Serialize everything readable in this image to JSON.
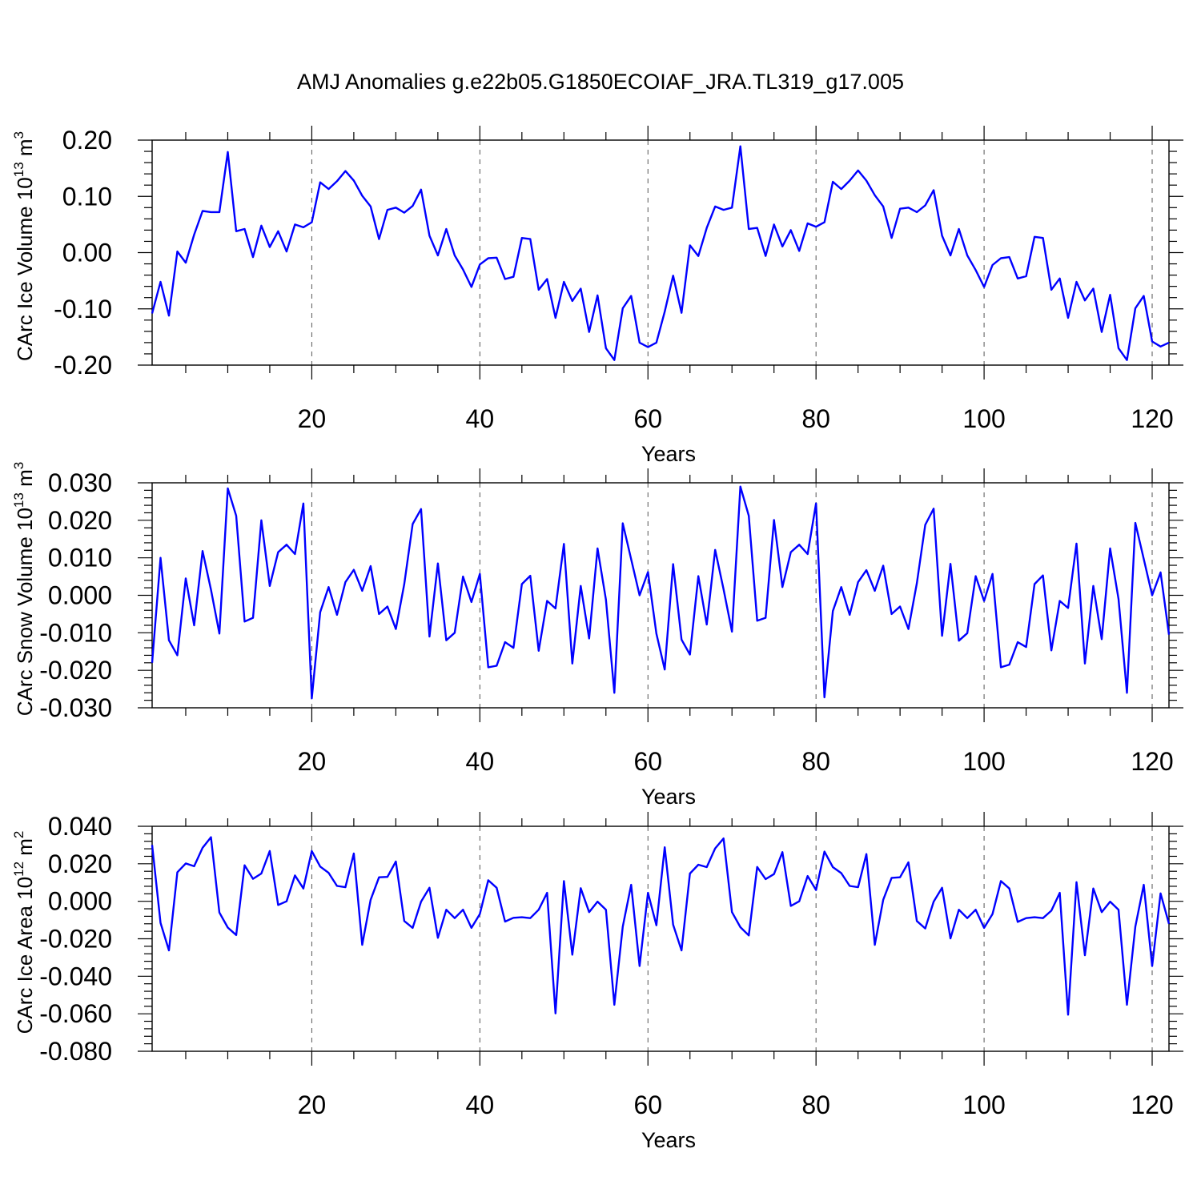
{
  "title": "AMJ Anomalies g.e22b05.G1850ECOIAF_JRA.TL319_g17.005",
  "chart_data": [
    {
      "type": "line",
      "name": "ice-volume",
      "ylabel": "CArc Ice Volume",
      "ylabel_unit_base": "10",
      "ylabel_unit_exp": "13",
      "ylabel_unit_rest": "m",
      "ylabel_unit_pow": "3",
      "xlabel": "Years",
      "xlim": [
        1,
        122
      ],
      "ylim": [
        -0.2,
        0.2
      ],
      "xticks": [
        20,
        40,
        60,
        80,
        100,
        120
      ],
      "xtick_labels": [
        "20",
        "40",
        "60",
        "80",
        "100",
        "120"
      ],
      "yticks": [
        -0.2,
        -0.1,
        0.0,
        0.1,
        0.2
      ],
      "ytick_labels": [
        "-0.20",
        "-0.10",
        "0.00",
        "0.10",
        "0.20"
      ],
      "x_start": 1,
      "values": [
        -0.108,
        -0.052,
        -0.112,
        0.002,
        -0.018,
        0.032,
        0.074,
        0.072,
        0.072,
        0.179,
        0.038,
        0.042,
        -0.008,
        0.048,
        0.01,
        0.038,
        0.002,
        0.05,
        0.045,
        0.054,
        0.125,
        0.113,
        0.127,
        0.145,
        0.128,
        0.101,
        0.082,
        0.024,
        0.076,
        0.08,
        0.071,
        0.083,
        0.112,
        0.03,
        -0.005,
        0.042,
        -0.005,
        -0.03,
        -0.061,
        -0.021,
        -0.01,
        -0.009,
        -0.047,
        -0.043,
        0.026,
        0.024,
        -0.066,
        -0.047,
        -0.116,
        -0.052,
        -0.086,
        -0.064,
        -0.141,
        -0.076,
        -0.17,
        -0.191,
        -0.099,
        -0.077,
        -0.16,
        -0.168,
        -0.16,
        -0.105,
        -0.041,
        -0.107,
        0.013,
        -0.006,
        0.044,
        0.082,
        0.076,
        0.08,
        0.189,
        0.042,
        0.044,
        -0.006,
        0.05,
        0.011,
        0.04,
        0.003,
        0.052,
        0.046,
        0.054,
        0.126,
        0.113,
        0.128,
        0.146,
        0.128,
        0.102,
        0.082,
        0.026,
        0.078,
        0.08,
        0.072,
        0.084,
        0.111,
        0.03,
        -0.005,
        0.042,
        -0.005,
        -0.031,
        -0.061,
        -0.022,
        -0.01,
        -0.008,
        -0.046,
        -0.042,
        0.028,
        0.026,
        -0.066,
        -0.046,
        -0.116,
        -0.052,
        -0.085,
        -0.064,
        -0.141,
        -0.075,
        -0.17,
        -0.191,
        -0.099,
        -0.077,
        -0.158,
        -0.167,
        -0.16
      ]
    },
    {
      "type": "line",
      "name": "snow-volume",
      "ylabel": "CArc Snow Volume",
      "ylabel_unit_base": "10",
      "ylabel_unit_exp": "13",
      "ylabel_unit_rest": "m",
      "ylabel_unit_pow": "3",
      "xlabel": "Years",
      "xlim": [
        1,
        122
      ],
      "ylim": [
        -0.03,
        0.03
      ],
      "xticks": [
        20,
        40,
        60,
        80,
        100,
        120
      ],
      "xtick_labels": [
        "20",
        "40",
        "60",
        "80",
        "100",
        "120"
      ],
      "yticks": [
        -0.03,
        -0.02,
        -0.01,
        0.0,
        0.01,
        0.02,
        0.03
      ],
      "ytick_labels": [
        "-0.030",
        "-0.020",
        "-0.010",
        "0.000",
        "0.010",
        "0.020",
        "0.030"
      ],
      "x_start": 1,
      "values": [
        -0.018,
        0.01,
        -0.012,
        -0.016,
        0.0045,
        -0.008,
        0.0118,
        0.0015,
        -0.0102,
        0.0285,
        0.0212,
        -0.007,
        -0.006,
        0.02,
        0.0025,
        0.0115,
        0.0135,
        0.011,
        0.0245,
        -0.0275,
        -0.0045,
        0.0022,
        -0.0052,
        0.0035,
        0.0068,
        0.0012,
        0.0078,
        -0.005,
        -0.003,
        -0.009,
        0.003,
        0.019,
        0.023,
        -0.011,
        0.0085,
        -0.012,
        -0.01,
        0.005,
        -0.0018,
        0.0057,
        -0.0192,
        -0.0188,
        -0.0125,
        -0.014,
        0.003,
        0.0052,
        -0.0148,
        -0.0015,
        -0.0035,
        0.0137,
        -0.0182,
        0.0025,
        -0.0115,
        0.0125,
        -0.0012,
        -0.026,
        0.0192,
        0.0096,
        0.0,
        0.0062,
        -0.0102,
        -0.0198,
        0.0083,
        -0.0118,
        -0.0158,
        0.0051,
        -0.0078,
        0.0121,
        0.0016,
        -0.0097,
        0.029,
        0.0212,
        -0.0068,
        -0.006,
        0.0201,
        0.0022,
        0.0115,
        0.0135,
        0.011,
        0.0245,
        -0.0272,
        -0.0042,
        0.0022,
        -0.0052,
        0.0035,
        0.0067,
        0.0012,
        0.0079,
        -0.005,
        -0.003,
        -0.009,
        0.0032,
        0.0188,
        0.0231,
        -0.0108,
        0.0084,
        -0.0121,
        -0.0101,
        0.0051,
        -0.0015,
        0.0057,
        -0.0192,
        -0.0185,
        -0.0125,
        -0.0138,
        0.003,
        0.0053,
        -0.0147,
        -0.0015,
        -0.0034,
        0.0138,
        -0.0182,
        0.0025,
        -0.0117,
        0.0125,
        -0.001,
        -0.026,
        0.0193,
        0.0097,
        0.0,
        0.0061,
        -0.0105
      ]
    },
    {
      "type": "line",
      "name": "ice-area",
      "ylabel": "CArc Ice Area",
      "ylabel_unit_base": "10",
      "ylabel_unit_exp": "12",
      "ylabel_unit_rest": "m",
      "ylabel_unit_pow": "2",
      "xlabel": "Years",
      "xlim": [
        1,
        122
      ],
      "ylim": [
        -0.08,
        0.04
      ],
      "xticks": [
        20,
        40,
        60,
        80,
        100,
        120
      ],
      "xtick_labels": [
        "20",
        "40",
        "60",
        "80",
        "100",
        "120"
      ],
      "yticks": [
        -0.08,
        -0.06,
        -0.04,
        -0.02,
        0.0,
        0.02,
        0.04
      ],
      "ytick_labels": [
        "-0.080",
        "-0.060",
        "-0.040",
        "-0.020",
        "0.000",
        "0.020",
        "0.040"
      ],
      "x_start": 1,
      "values": [
        0.03,
        -0.0115,
        -0.0262,
        0.0155,
        0.0202,
        0.0187,
        0.0285,
        0.0342,
        -0.006,
        -0.014,
        -0.018,
        0.0192,
        0.012,
        0.0148,
        0.0268,
        -0.002,
        0.0,
        0.0138,
        0.0068,
        0.0268,
        0.0185,
        0.0152,
        0.0082,
        0.0075,
        0.0255,
        -0.0232,
        0.0008,
        0.0128,
        0.013,
        0.0212,
        -0.0105,
        -0.0142,
        -0.0002,
        0.0072,
        -0.0195,
        -0.0045,
        -0.009,
        -0.0045,
        -0.0142,
        -0.0068,
        0.0112,
        0.0072,
        -0.0108,
        -0.0088,
        -0.0085,
        -0.009,
        -0.0045,
        0.0045,
        -0.0598,
        0.0108,
        -0.0285,
        0.007,
        -0.0058,
        -0.0002,
        -0.0045,
        -0.0552,
        -0.0135,
        0.0088,
        -0.0345,
        0.0045,
        -0.0128,
        0.0288,
        -0.0125,
        -0.0262,
        0.0148,
        0.0195,
        0.0182,
        0.0282,
        0.0335,
        -0.0058,
        -0.0138,
        -0.0182,
        0.0183,
        0.0118,
        0.0145,
        0.0262,
        -0.0025,
        0.0,
        0.0135,
        0.006,
        0.0265,
        0.0182,
        0.015,
        0.0082,
        0.0075,
        0.0252,
        -0.0232,
        0.0008,
        0.0125,
        0.0128,
        0.0208,
        -0.0105,
        -0.0145,
        -0.0002,
        0.0072,
        -0.0198,
        -0.0045,
        -0.009,
        -0.0045,
        -0.0142,
        -0.0068,
        0.0108,
        0.0068,
        -0.011,
        -0.009,
        -0.0085,
        -0.009,
        -0.005,
        0.0045,
        -0.0605,
        0.0102,
        -0.0288,
        0.0068,
        -0.0058,
        -0.0002,
        -0.0045,
        -0.0552,
        -0.0135,
        0.0088,
        -0.0345,
        0.0042,
        -0.012
      ]
    }
  ]
}
